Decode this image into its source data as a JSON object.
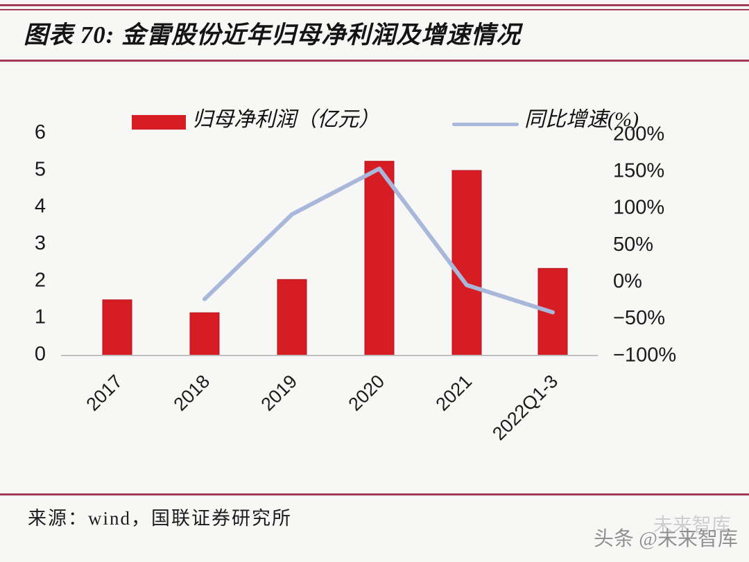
{
  "figure": {
    "title": "图表 70: 金雷股份近年归母净利润及增速情况",
    "source": "来源：wind，国联证券研究所",
    "watermark_main": "头条 @未来智库",
    "watermark_ghost": "未来智库"
  },
  "colors": {
    "accent_rule": "#a03a55",
    "bar": "#d61d24",
    "bar_edge": "#b5141b",
    "line": "#a9b8da",
    "axis_text": "#1a1a1a",
    "baseline": "#bfbfbf"
  },
  "chart_data": {
    "type": "bar",
    "subtype": "bar+line dual axis",
    "title": "金雷股份近年归母净利润及增速情况",
    "categories": [
      "2017",
      "2018",
      "2019",
      "2020",
      "2021",
      "2022Q1-3"
    ],
    "series": [
      {
        "name": "归母净利润（亿元）",
        "type": "bar",
        "axis": "left",
        "color": "#d61d24",
        "values": [
          1.45,
          1.1,
          2.0,
          5.2,
          4.95,
          2.3
        ]
      },
      {
        "name": "同比增速(%)",
        "type": "line",
        "axis": "right",
        "color": "#a9b8da",
        "values": [
          null,
          -25,
          90,
          152,
          -6,
          -43
        ]
      }
    ],
    "left_axis": {
      "ticks": [
        6,
        5,
        4,
        3,
        2,
        1,
        0
      ],
      "range": [
        0,
        6
      ]
    },
    "right_axis": {
      "tick_labels": [
        "200%",
        "150%",
        "100%",
        "50%",
        "0%",
        "−50%",
        "−100%"
      ],
      "tick_values": [
        200,
        150,
        100,
        50,
        0,
        -50,
        -100
      ],
      "range": [
        -100,
        200
      ]
    },
    "legend_position": "top",
    "grid": false
  }
}
